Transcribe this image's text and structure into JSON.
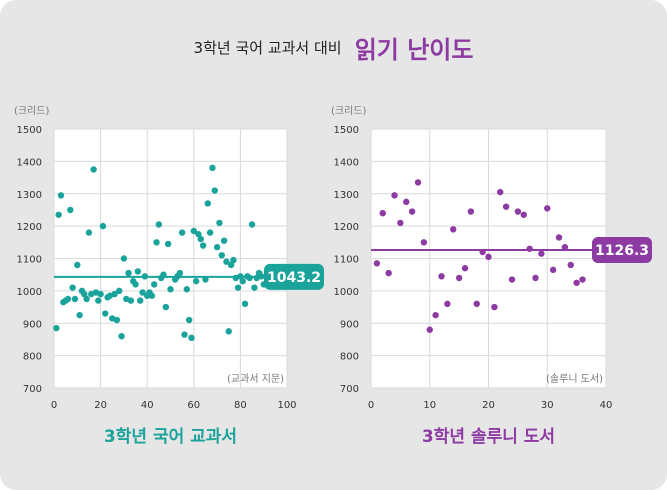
{
  "header": {
    "prefix": "3학년 국어 교과서 대비",
    "main": "읽기 난이도"
  },
  "chart_data": [
    {
      "type": "scatter",
      "title": "3학년 국어 교과서",
      "unit_label": "(크리드)",
      "note": "(교과서 지문)",
      "color": "#1aa39a",
      "mean": 1043.2,
      "mean_label": "1043.2",
      "xlim": [
        0,
        100
      ],
      "ylim": [
        700,
        1500
      ],
      "xticks": [
        0,
        20,
        40,
        60,
        80,
        100
      ],
      "yticks": [
        700,
        800,
        900,
        1000,
        1100,
        1200,
        1300,
        1400,
        1500
      ],
      "points": [
        [
          1,
          885
        ],
        [
          2,
          1235
        ],
        [
          3,
          1295
        ],
        [
          4,
          965
        ],
        [
          5,
          970
        ],
        [
          6,
          975
        ],
        [
          7,
          1250
        ],
        [
          8,
          1010
        ],
        [
          9,
          975
        ],
        [
          10,
          1080
        ],
        [
          11,
          925
        ],
        [
          12,
          1000
        ],
        [
          13,
          990
        ],
        [
          14,
          975
        ],
        [
          15,
          1180
        ],
        [
          16,
          990
        ],
        [
          17,
          1375
        ],
        [
          18,
          995
        ],
        [
          19,
          970
        ],
        [
          20,
          990
        ],
        [
          21,
          1200
        ],
        [
          22,
          930
        ],
        [
          23,
          980
        ],
        [
          24,
          985
        ],
        [
          25,
          915
        ],
        [
          26,
          990
        ],
        [
          27,
          910
        ],
        [
          28,
          1000
        ],
        [
          29,
          860
        ],
        [
          30,
          1100
        ],
        [
          31,
          975
        ],
        [
          32,
          1055
        ],
        [
          33,
          970
        ],
        [
          34,
          1030
        ],
        [
          35,
          1020
        ],
        [
          36,
          1060
        ],
        [
          37,
          970
        ],
        [
          38,
          995
        ],
        [
          39,
          1045
        ],
        [
          40,
          985
        ],
        [
          41,
          995
        ],
        [
          42,
          985
        ],
        [
          43,
          1020
        ],
        [
          44,
          1150
        ],
        [
          45,
          1205
        ],
        [
          46,
          1040
        ],
        [
          47,
          1050
        ],
        [
          48,
          950
        ],
        [
          49,
          1145
        ],
        [
          50,
          1005
        ],
        [
          52,
          1035
        ],
        [
          53,
          1045
        ],
        [
          54,
          1055
        ],
        [
          55,
          1180
        ],
        [
          56,
          865
        ],
        [
          57,
          1005
        ],
        [
          58,
          910
        ],
        [
          59,
          855
        ],
        [
          60,
          1185
        ],
        [
          61,
          1030
        ],
        [
          62,
          1175
        ],
        [
          63,
          1160
        ],
        [
          64,
          1140
        ],
        [
          65,
          1035
        ],
        [
          66,
          1270
        ],
        [
          67,
          1180
        ],
        [
          68,
          1380
        ],
        [
          69,
          1310
        ],
        [
          70,
          1135
        ],
        [
          71,
          1210
        ],
        [
          72,
          1110
        ],
        [
          73,
          1155
        ],
        [
          74,
          1090
        ],
        [
          75,
          875
        ],
        [
          76,
          1080
        ],
        [
          77,
          1095
        ],
        [
          78,
          1040
        ],
        [
          79,
          1010
        ],
        [
          80,
          1045
        ],
        [
          81,
          1030
        ],
        [
          82,
          960
        ],
        [
          83,
          1045
        ],
        [
          84,
          1040
        ],
        [
          85,
          1205
        ],
        [
          86,
          1010
        ],
        [
          87,
          1040
        ],
        [
          88,
          1055
        ],
        [
          89,
          1045
        ],
        [
          90,
          1020
        ]
      ]
    },
    {
      "type": "scatter",
      "title": "3학년 솔루니 도서",
      "unit_label": "(크리드)",
      "note": "(솔루니 도서)",
      "color": "#8e3aa3",
      "mean": 1126.3,
      "mean_label": "1126.3",
      "xlim": [
        0,
        40
      ],
      "ylim": [
        700,
        1500
      ],
      "xticks": [
        0,
        10,
        20,
        30,
        40
      ],
      "yticks": [
        700,
        800,
        900,
        1000,
        1100,
        1200,
        1300,
        1400,
        1500
      ],
      "points": [
        [
          1,
          1085
        ],
        [
          2,
          1240
        ],
        [
          3,
          1055
        ],
        [
          4,
          1295
        ],
        [
          5,
          1210
        ],
        [
          6,
          1275
        ],
        [
          7,
          1245
        ],
        [
          8,
          1335
        ],
        [
          9,
          1150
        ],
        [
          10,
          880
        ],
        [
          11,
          925
        ],
        [
          12,
          1045
        ],
        [
          13,
          960
        ],
        [
          14,
          1190
        ],
        [
          15,
          1040
        ],
        [
          16,
          1070
        ],
        [
          17,
          1245
        ],
        [
          18,
          960
        ],
        [
          19,
          1120
        ],
        [
          20,
          1105
        ],
        [
          21,
          950
        ],
        [
          22,
          1305
        ],
        [
          23,
          1260
        ],
        [
          24,
          1035
        ],
        [
          25,
          1245
        ],
        [
          26,
          1235
        ],
        [
          27,
          1130
        ],
        [
          28,
          1040
        ],
        [
          29,
          1115
        ],
        [
          30,
          1255
        ],
        [
          31,
          1065
        ],
        [
          32,
          1165
        ],
        [
          33,
          1135
        ],
        [
          34,
          1080
        ],
        [
          35,
          1025
        ],
        [
          36,
          1035
        ]
      ]
    }
  ]
}
